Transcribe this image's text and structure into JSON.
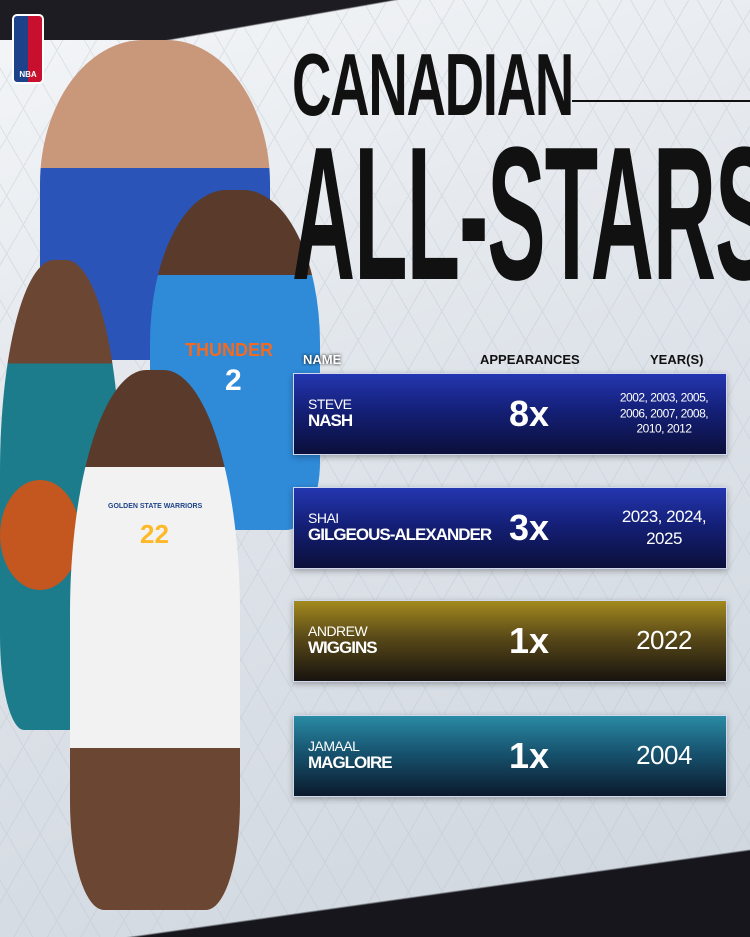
{
  "logo": {
    "text": "NBA",
    "colors": [
      "#1d428a",
      "#c8102e"
    ]
  },
  "title": {
    "line1": "CANADIAN",
    "line2": "ALL-STARS"
  },
  "headers": {
    "name": "NAME",
    "appearances": "APPEARANCES",
    "years": "YEAR(S)"
  },
  "rows": [
    {
      "first": "STEVE",
      "last": "NASH",
      "appearances": "8x",
      "years": "2002, 2003, 2005, 2006, 2007, 2008, 2010, 2012",
      "color": "#142078"
    },
    {
      "first": "SHAI",
      "last": "GILGEOUS-ALEXANDER",
      "appearances": "3x",
      "years": "2023, 2024, 2025",
      "color": "#142078"
    },
    {
      "first": "ANDREW",
      "last": "WIGGINS",
      "appearances": "1x",
      "years": "2022",
      "color": "#5a4a18"
    },
    {
      "first": "JAMAAL",
      "last": "MAGLOIRE",
      "appearances": "1x",
      "years": "2004",
      "color": "#175470"
    }
  ],
  "jerseys": {
    "thunder": "THUNDER",
    "thunder_number": "2",
    "warriors": "GOLDEN STATE WARRIORS",
    "warriors_number": "22"
  }
}
